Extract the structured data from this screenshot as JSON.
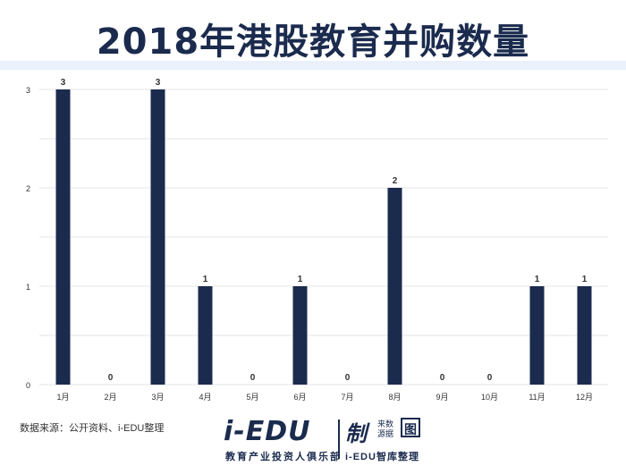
{
  "header": {
    "title": "2018年港股教育并购数量"
  },
  "footer": {
    "source": "数据来源：公开资料、i-EDU整理",
    "logo_main": "i-EDU",
    "logo_sub": "教育产业投资人俱乐部",
    "logo_right": "制",
    "logo_tag": "来数 源据",
    "logo_badge": "图",
    "logo_right_sub": "i-EDU智库整理"
  },
  "colors": {
    "bar": "#1b2b4e",
    "grid": "#e6e6e6",
    "axis_text": "#333333"
  },
  "chart_data": {
    "type": "bar",
    "title": "2018年港股教育并购数量",
    "xlabel": "",
    "ylabel": "",
    "categories": [
      "1月",
      "2月",
      "3月",
      "4月",
      "5月",
      "6月",
      "7月",
      "8月",
      "9月",
      "10月",
      "11月",
      "12月"
    ],
    "values": [
      3,
      0,
      3,
      1,
      0,
      1,
      0,
      2,
      0,
      0,
      1,
      1
    ],
    "yticks": [
      0,
      1,
      2,
      3
    ],
    "ylim": [
      0,
      3
    ],
    "grid": true,
    "data_labels": true,
    "legend": "none"
  }
}
